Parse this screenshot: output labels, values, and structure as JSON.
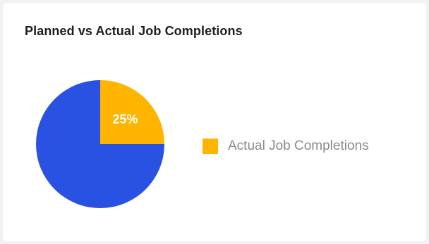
{
  "chart_data": {
    "type": "pie",
    "title": "Planned vs Actual Job Completions",
    "slices": [
      {
        "label": "Actual Job Completions",
        "value": 25,
        "display": "25%",
        "color": "#ffb400"
      },
      {
        "label": "",
        "value": 75,
        "display": "",
        "color": "#2952e3"
      }
    ],
    "legend": {
      "position": "right",
      "entries": [
        {
          "label": "Actual Job Completions",
          "color": "#ffb400"
        }
      ]
    }
  }
}
